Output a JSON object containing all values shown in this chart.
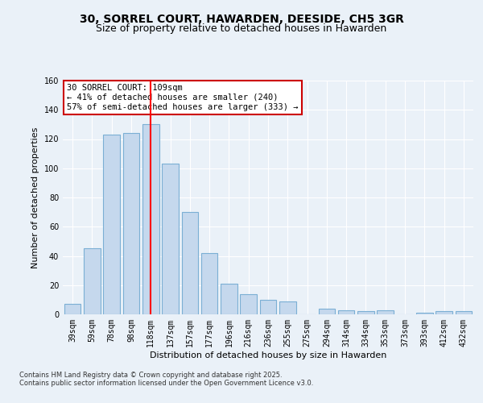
{
  "title": "30, SORREL COURT, HAWARDEN, DEESIDE, CH5 3GR",
  "subtitle": "Size of property relative to detached houses in Hawarden",
  "xlabel": "Distribution of detached houses by size in Hawarden",
  "ylabel": "Number of detached properties",
  "categories": [
    "39sqm",
    "59sqm",
    "78sqm",
    "98sqm",
    "118sqm",
    "137sqm",
    "157sqm",
    "177sqm",
    "196sqm",
    "216sqm",
    "236sqm",
    "255sqm",
    "275sqm",
    "294sqm",
    "314sqm",
    "334sqm",
    "353sqm",
    "373sqm",
    "393sqm",
    "412sqm",
    "432sqm"
  ],
  "values": [
    7,
    45,
    123,
    124,
    130,
    103,
    70,
    42,
    21,
    14,
    10,
    9,
    0,
    4,
    3,
    2,
    3,
    0,
    1,
    2,
    2
  ],
  "bar_color": "#c5d8ed",
  "bar_edge_color": "#7bafd4",
  "red_line_x": 4,
  "annotation_title": "30 SORREL COURT: 109sqm",
  "annotation_line1": "← 41% of detached houses are smaller (240)",
  "annotation_line2": "57% of semi-detached houses are larger (333) →",
  "annotation_box_color": "#ffffff",
  "annotation_box_edge_color": "#cc0000",
  "ylim": [
    0,
    160
  ],
  "yticks": [
    0,
    20,
    40,
    60,
    80,
    100,
    120,
    140,
    160
  ],
  "footer_line1": "Contains HM Land Registry data © Crown copyright and database right 2025.",
  "footer_line2": "Contains public sector information licensed under the Open Government Licence v3.0.",
  "bg_color": "#eaf1f8",
  "plot_bg_color": "#eaf1f8",
  "grid_color": "#ffffff",
  "title_fontsize": 10,
  "subtitle_fontsize": 9,
  "axis_label_fontsize": 8,
  "tick_fontsize": 7,
  "annotation_fontsize": 7.5,
  "footer_fontsize": 6
}
